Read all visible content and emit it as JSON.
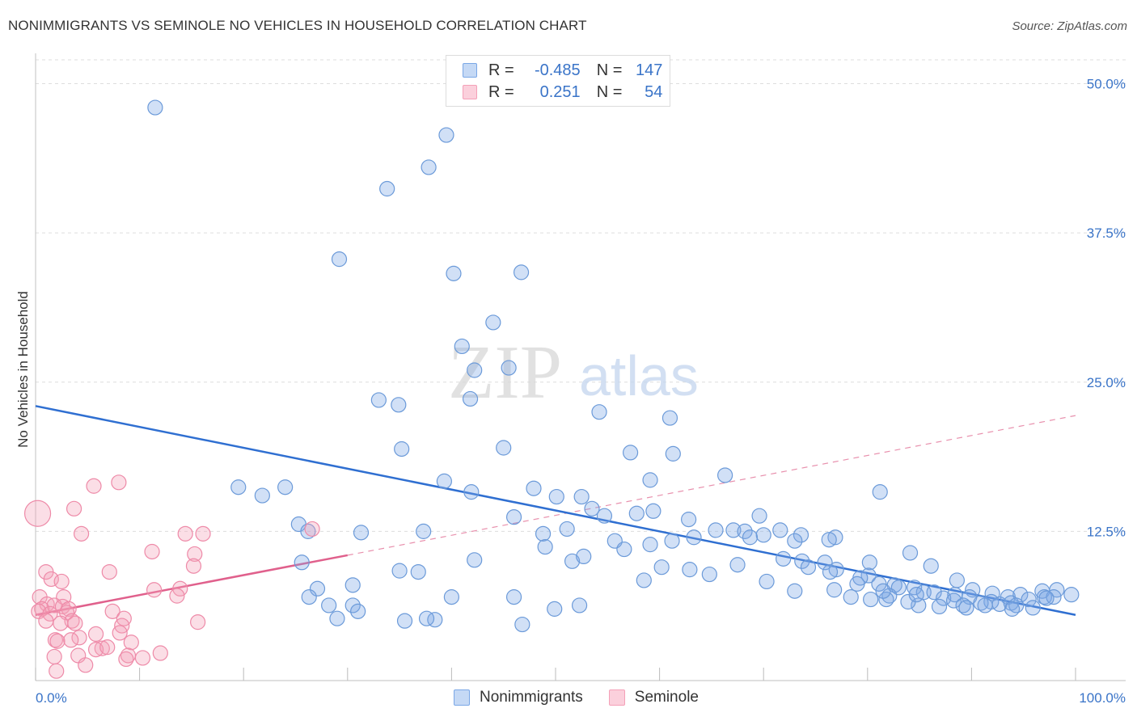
{
  "header": {
    "title": "NONIMMIGRANTS VS SEMINOLE NO VEHICLES IN HOUSEHOLD CORRELATION CHART",
    "source": "Source: ZipAtlas.com"
  },
  "watermark": {
    "zip": "ZIP",
    "atlas": "atlas"
  },
  "legend": {
    "r_label": "R =",
    "n_label": "N =",
    "rows": [
      {
        "r": "-0.485",
        "n": "147"
      },
      {
        "r": "0.251",
        "n": "54"
      }
    ]
  },
  "chart_data": {
    "type": "scatter",
    "title": "NONIMMIGRANTS VS SEMINOLE NO VEHICLES IN HOUSEHOLD CORRELATION CHART",
    "xlabel": "",
    "ylabel": "No Vehicles in Household",
    "xlim": [
      0,
      100
    ],
    "ylim": [
      0,
      52
    ],
    "x_tick_labels": [
      "0.0%",
      "100.0%"
    ],
    "y_ticks": [
      12.5,
      25.0,
      37.5,
      50.0
    ],
    "y_tick_labels": [
      "12.5%",
      "25.0%",
      "37.5%",
      "50.0%"
    ],
    "grid": true,
    "legend_position": "bottom-center",
    "colors": {
      "Nonimmigrants": "#7aa7e6",
      "Seminole": "#f4a0b8",
      "blue_line": "#2f6fd1",
      "pink_line": "#e0608c"
    },
    "series": [
      {
        "name": "Nonimmigrants",
        "trend": {
          "x": [
            0,
            100
          ],
          "y": [
            23.0,
            5.5
          ]
        },
        "points": [
          [
            11.5,
            48.0
          ],
          [
            39.5,
            45.7
          ],
          [
            37.8,
            43.0
          ],
          [
            33.8,
            41.2
          ],
          [
            29.2,
            35.3
          ],
          [
            40.2,
            34.1
          ],
          [
            46.7,
            34.2
          ],
          [
            44.0,
            30.0
          ],
          [
            41.0,
            28.0
          ],
          [
            42.2,
            26.0
          ],
          [
            45.5,
            26.2
          ],
          [
            33.0,
            23.5
          ],
          [
            41.8,
            23.6
          ],
          [
            34.9,
            23.1
          ],
          [
            54.2,
            22.5
          ],
          [
            61.0,
            22.0
          ],
          [
            35.2,
            19.4
          ],
          [
            45.0,
            19.5
          ],
          [
            57.2,
            19.1
          ],
          [
            61.3,
            19.0
          ],
          [
            66.3,
            17.2
          ],
          [
            59.1,
            16.8
          ],
          [
            39.3,
            16.7
          ],
          [
            47.9,
            16.1
          ],
          [
            19.5,
            16.2
          ],
          [
            21.8,
            15.5
          ],
          [
            24.0,
            16.2
          ],
          [
            41.9,
            15.8
          ],
          [
            50.1,
            15.4
          ],
          [
            52.5,
            15.4
          ],
          [
            81.2,
            15.8
          ],
          [
            53.5,
            14.4
          ],
          [
            57.8,
            14.0
          ],
          [
            59.4,
            14.2
          ],
          [
            54.7,
            13.8
          ],
          [
            46.0,
            13.7
          ],
          [
            62.8,
            13.5
          ],
          [
            69.6,
            13.8
          ],
          [
            25.3,
            13.1
          ],
          [
            26.2,
            12.5
          ],
          [
            31.3,
            12.4
          ],
          [
            37.3,
            12.5
          ],
          [
            51.1,
            12.7
          ],
          [
            65.4,
            12.6
          ],
          [
            67.1,
            12.6
          ],
          [
            68.2,
            12.5
          ],
          [
            70.0,
            12.2
          ],
          [
            68.7,
            12.0
          ],
          [
            71.6,
            12.6
          ],
          [
            73.6,
            12.2
          ],
          [
            76.9,
            12.0
          ],
          [
            48.8,
            12.3
          ],
          [
            49.0,
            11.2
          ],
          [
            73.0,
            11.7
          ],
          [
            61.2,
            11.7
          ],
          [
            63.3,
            12.0
          ],
          [
            55.7,
            11.7
          ],
          [
            56.6,
            11.0
          ],
          [
            59.1,
            11.4
          ],
          [
            76.3,
            11.8
          ],
          [
            71.9,
            10.2
          ],
          [
            73.7,
            10.0
          ],
          [
            75.9,
            9.9
          ],
          [
            51.6,
            10.0
          ],
          [
            52.7,
            10.4
          ],
          [
            42.2,
            10.1
          ],
          [
            25.6,
            9.9
          ],
          [
            35.0,
            9.2
          ],
          [
            36.8,
            9.1
          ],
          [
            60.2,
            9.5
          ],
          [
            62.9,
            9.3
          ],
          [
            67.5,
            9.7
          ],
          [
            74.3,
            9.5
          ],
          [
            84.1,
            10.7
          ],
          [
            80.2,
            9.9
          ],
          [
            86.1,
            9.6
          ],
          [
            77.0,
            9.3
          ],
          [
            80.1,
            8.8
          ],
          [
            76.4,
            9.1
          ],
          [
            79.3,
            8.6
          ],
          [
            64.8,
            8.9
          ],
          [
            58.5,
            8.4
          ],
          [
            70.3,
            8.3
          ],
          [
            30.5,
            8.0
          ],
          [
            88.6,
            8.4
          ],
          [
            84.5,
            7.8
          ],
          [
            82.6,
            8.0
          ],
          [
            79.0,
            8.1
          ],
          [
            81.1,
            8.1
          ],
          [
            83.0,
            7.8
          ],
          [
            85.4,
            7.4
          ],
          [
            86.4,
            7.4
          ],
          [
            90.1,
            7.6
          ],
          [
            88.4,
            7.2
          ],
          [
            89.8,
            7.0
          ],
          [
            92.0,
            7.3
          ],
          [
            93.5,
            7.0
          ],
          [
            94.7,
            7.2
          ],
          [
            96.8,
            7.5
          ],
          [
            98.2,
            7.6
          ],
          [
            97.0,
            7.0
          ],
          [
            95.5,
            6.8
          ],
          [
            91.9,
            6.6
          ],
          [
            90.9,
            6.5
          ],
          [
            92.7,
            6.4
          ],
          [
            93.8,
            6.5
          ],
          [
            94.3,
            6.3
          ],
          [
            97.9,
            7.0
          ],
          [
            99.6,
            7.2
          ],
          [
            87.3,
            6.9
          ],
          [
            88.3,
            6.7
          ],
          [
            89.2,
            6.3
          ],
          [
            84.9,
            6.3
          ],
          [
            83.9,
            6.6
          ],
          [
            84.7,
            7.2
          ],
          [
            82.1,
            7.1
          ],
          [
            81.8,
            6.8
          ],
          [
            78.4,
            7.0
          ],
          [
            80.3,
            6.8
          ],
          [
            81.5,
            7.5
          ],
          [
            86.9,
            6.2
          ],
          [
            89.5,
            6.1
          ],
          [
            91.3,
            6.3
          ],
          [
            93.9,
            6.0
          ],
          [
            95.9,
            6.1
          ],
          [
            97.2,
            6.9
          ],
          [
            73.0,
            7.5
          ],
          [
            76.8,
            7.6
          ],
          [
            27.1,
            7.7
          ],
          [
            26.3,
            7.0
          ],
          [
            28.2,
            6.3
          ],
          [
            30.5,
            6.3
          ],
          [
            31.0,
            5.8
          ],
          [
            40.0,
            7.0
          ],
          [
            46.0,
            7.0
          ],
          [
            49.9,
            6.0
          ],
          [
            52.3,
            6.3
          ],
          [
            29.0,
            5.2
          ],
          [
            35.5,
            5.0
          ],
          [
            38.4,
            5.1
          ],
          [
            37.6,
            5.2
          ],
          [
            46.8,
            4.7
          ]
        ]
      },
      {
        "name": "Seminole",
        "trend": {
          "x": [
            0,
            30
          ],
          "y": [
            5.5,
            10.5
          ],
          "dashed_extension": {
            "x": [
              30,
              100
            ],
            "y": [
              10.5,
              22.2
            ]
          }
        },
        "points": [
          [
            0.2,
            14.0
          ],
          [
            8.0,
            16.6
          ],
          [
            5.6,
            16.3
          ],
          [
            3.7,
            14.4
          ],
          [
            4.4,
            12.3
          ],
          [
            16.1,
            12.3
          ],
          [
            14.4,
            12.3
          ],
          [
            26.6,
            12.7
          ],
          [
            11.2,
            10.8
          ],
          [
            15.3,
            10.6
          ],
          [
            15.2,
            9.6
          ],
          [
            1.0,
            9.1
          ],
          [
            7.1,
            9.1
          ],
          [
            1.5,
            8.5
          ],
          [
            2.5,
            8.3
          ],
          [
            11.4,
            7.6
          ],
          [
            13.9,
            7.7
          ],
          [
            13.6,
            7.1
          ],
          [
            0.4,
            7.0
          ],
          [
            2.7,
            7.0
          ],
          [
            1.1,
            6.4
          ],
          [
            1.8,
            6.3
          ],
          [
            2.6,
            6.2
          ],
          [
            0.6,
            6.0
          ],
          [
            0.3,
            5.8
          ],
          [
            3.2,
            6.0
          ],
          [
            1.4,
            5.6
          ],
          [
            3.0,
            5.7
          ],
          [
            7.4,
            5.8
          ],
          [
            3.5,
            5.0
          ],
          [
            1.0,
            5.0
          ],
          [
            3.8,
            4.8
          ],
          [
            2.4,
            4.8
          ],
          [
            8.5,
            5.2
          ],
          [
            8.3,
            4.6
          ],
          [
            15.6,
            4.9
          ],
          [
            5.8,
            3.9
          ],
          [
            8.1,
            4.0
          ],
          [
            4.2,
            3.6
          ],
          [
            1.9,
            3.4
          ],
          [
            2.1,
            3.3
          ],
          [
            3.4,
            3.4
          ],
          [
            9.2,
            3.2
          ],
          [
            6.4,
            2.7
          ],
          [
            5.8,
            2.6
          ],
          [
            6.9,
            2.8
          ],
          [
            12.0,
            2.3
          ],
          [
            4.1,
            2.1
          ],
          [
            1.8,
            2.0
          ],
          [
            8.9,
            2.1
          ],
          [
            10.3,
            1.9
          ],
          [
            8.7,
            1.8
          ],
          [
            4.8,
            1.3
          ],
          [
            2.0,
            0.8
          ]
        ]
      }
    ]
  }
}
